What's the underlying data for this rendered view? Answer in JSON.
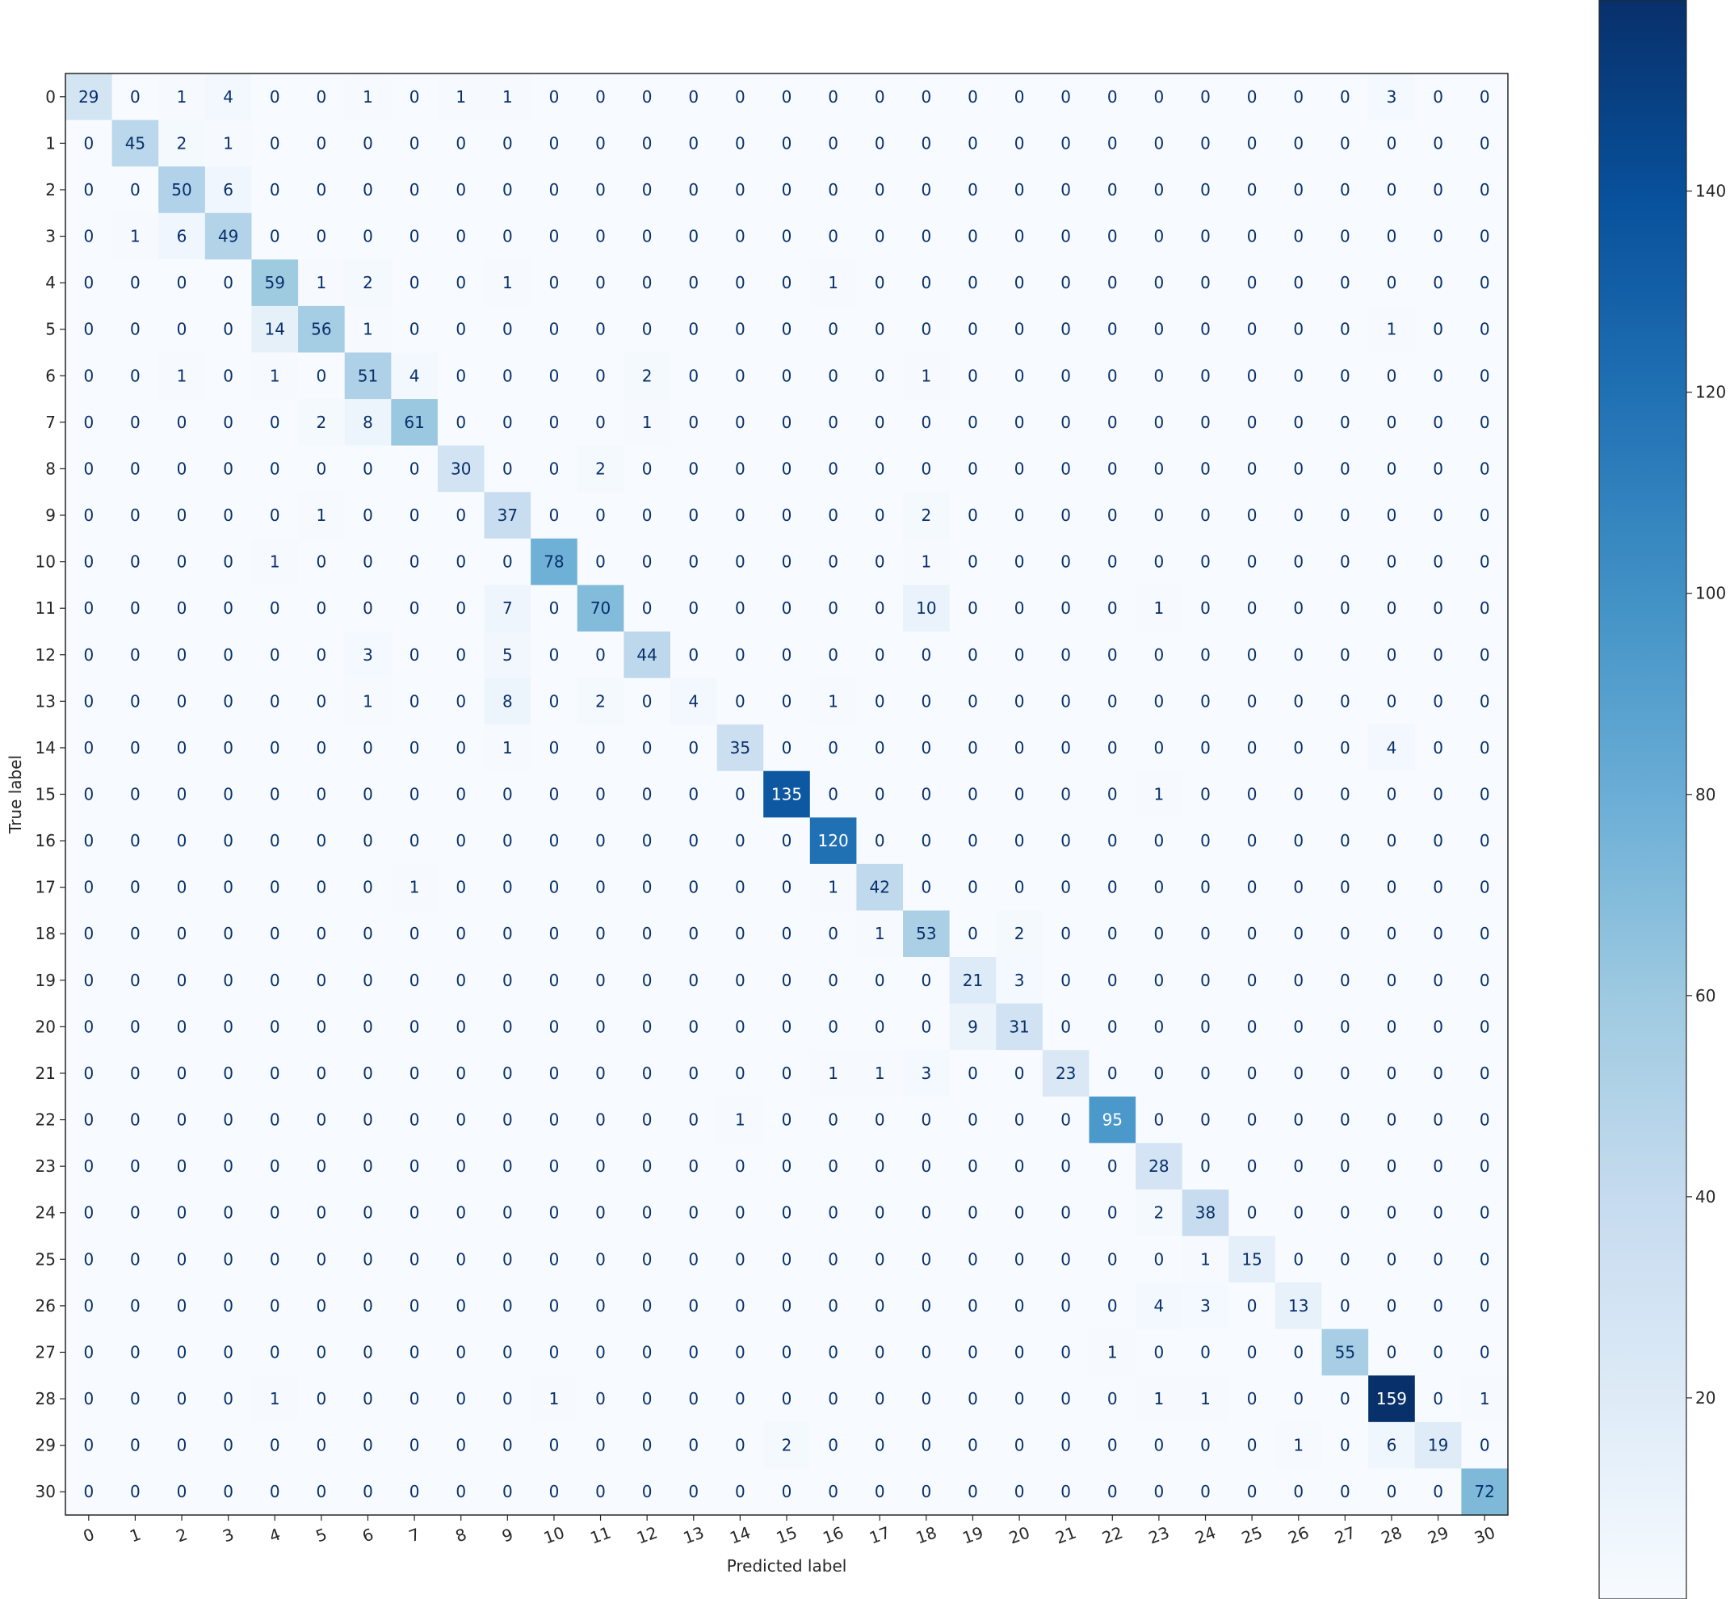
{
  "chart_data": {
    "type": "heatmap",
    "title": "",
    "xlabel": "Predicted label",
    "ylabel": "True label",
    "x_labels": [
      "0",
      "1",
      "2",
      "3",
      "4",
      "5",
      "6",
      "7",
      "8",
      "9",
      "10",
      "11",
      "12",
      "13",
      "14",
      "15",
      "16",
      "17",
      "18",
      "19",
      "20",
      "21",
      "22",
      "23",
      "24",
      "25",
      "26",
      "27",
      "28",
      "29",
      "30"
    ],
    "y_labels": [
      "0",
      "1",
      "2",
      "3",
      "4",
      "5",
      "6",
      "7",
      "8",
      "9",
      "10",
      "11",
      "12",
      "13",
      "14",
      "15",
      "16",
      "17",
      "18",
      "19",
      "20",
      "21",
      "22",
      "23",
      "24",
      "25",
      "26",
      "27",
      "28",
      "29",
      "30"
    ],
    "matrix": [
      [
        29,
        0,
        1,
        4,
        0,
        0,
        1,
        0,
        1,
        1,
        0,
        0,
        0,
        0,
        0,
        0,
        0,
        0,
        0,
        0,
        0,
        0,
        0,
        0,
        0,
        0,
        0,
        0,
        3,
        0,
        0
      ],
      [
        0,
        45,
        2,
        1,
        0,
        0,
        0,
        0,
        0,
        0,
        0,
        0,
        0,
        0,
        0,
        0,
        0,
        0,
        0,
        0,
        0,
        0,
        0,
        0,
        0,
        0,
        0,
        0,
        0,
        0,
        0
      ],
      [
        0,
        0,
        50,
        6,
        0,
        0,
        0,
        0,
        0,
        0,
        0,
        0,
        0,
        0,
        0,
        0,
        0,
        0,
        0,
        0,
        0,
        0,
        0,
        0,
        0,
        0,
        0,
        0,
        0,
        0,
        0
      ],
      [
        0,
        1,
        6,
        49,
        0,
        0,
        0,
        0,
        0,
        0,
        0,
        0,
        0,
        0,
        0,
        0,
        0,
        0,
        0,
        0,
        0,
        0,
        0,
        0,
        0,
        0,
        0,
        0,
        0,
        0,
        0
      ],
      [
        0,
        0,
        0,
        0,
        59,
        1,
        2,
        0,
        0,
        1,
        0,
        0,
        0,
        0,
        0,
        0,
        1,
        0,
        0,
        0,
        0,
        0,
        0,
        0,
        0,
        0,
        0,
        0,
        0,
        0,
        0
      ],
      [
        0,
        0,
        0,
        0,
        14,
        56,
        1,
        0,
        0,
        0,
        0,
        0,
        0,
        0,
        0,
        0,
        0,
        0,
        0,
        0,
        0,
        0,
        0,
        0,
        0,
        0,
        0,
        0,
        1,
        0,
        0
      ],
      [
        0,
        0,
        1,
        0,
        1,
        0,
        51,
        4,
        0,
        0,
        0,
        0,
        2,
        0,
        0,
        0,
        0,
        0,
        1,
        0,
        0,
        0,
        0,
        0,
        0,
        0,
        0,
        0,
        0,
        0,
        0
      ],
      [
        0,
        0,
        0,
        0,
        0,
        2,
        8,
        61,
        0,
        0,
        0,
        0,
        1,
        0,
        0,
        0,
        0,
        0,
        0,
        0,
        0,
        0,
        0,
        0,
        0,
        0,
        0,
        0,
        0,
        0,
        0
      ],
      [
        0,
        0,
        0,
        0,
        0,
        0,
        0,
        0,
        30,
        0,
        0,
        2,
        0,
        0,
        0,
        0,
        0,
        0,
        0,
        0,
        0,
        0,
        0,
        0,
        0,
        0,
        0,
        0,
        0,
        0,
        0
      ],
      [
        0,
        0,
        0,
        0,
        0,
        1,
        0,
        0,
        0,
        37,
        0,
        0,
        0,
        0,
        0,
        0,
        0,
        0,
        2,
        0,
        0,
        0,
        0,
        0,
        0,
        0,
        0,
        0,
        0,
        0,
        0
      ],
      [
        0,
        0,
        0,
        0,
        1,
        0,
        0,
        0,
        0,
        0,
        78,
        0,
        0,
        0,
        0,
        0,
        0,
        0,
        1,
        0,
        0,
        0,
        0,
        0,
        0,
        0,
        0,
        0,
        0,
        0,
        0
      ],
      [
        0,
        0,
        0,
        0,
        0,
        0,
        0,
        0,
        0,
        7,
        0,
        70,
        0,
        0,
        0,
        0,
        0,
        0,
        10,
        0,
        0,
        0,
        0,
        1,
        0,
        0,
        0,
        0,
        0,
        0,
        0
      ],
      [
        0,
        0,
        0,
        0,
        0,
        0,
        3,
        0,
        0,
        5,
        0,
        0,
        44,
        0,
        0,
        0,
        0,
        0,
        0,
        0,
        0,
        0,
        0,
        0,
        0,
        0,
        0,
        0,
        0,
        0,
        0
      ],
      [
        0,
        0,
        0,
        0,
        0,
        0,
        1,
        0,
        0,
        8,
        0,
        2,
        0,
        4,
        0,
        0,
        1,
        0,
        0,
        0,
        0,
        0,
        0,
        0,
        0,
        0,
        0,
        0,
        0,
        0,
        0
      ],
      [
        0,
        0,
        0,
        0,
        0,
        0,
        0,
        0,
        0,
        1,
        0,
        0,
        0,
        0,
        35,
        0,
        0,
        0,
        0,
        0,
        0,
        0,
        0,
        0,
        0,
        0,
        0,
        0,
        4,
        0,
        0
      ],
      [
        0,
        0,
        0,
        0,
        0,
        0,
        0,
        0,
        0,
        0,
        0,
        0,
        0,
        0,
        0,
        135,
        0,
        0,
        0,
        0,
        0,
        0,
        0,
        1,
        0,
        0,
        0,
        0,
        0,
        0,
        0
      ],
      [
        0,
        0,
        0,
        0,
        0,
        0,
        0,
        0,
        0,
        0,
        0,
        0,
        0,
        0,
        0,
        0,
        120,
        0,
        0,
        0,
        0,
        0,
        0,
        0,
        0,
        0,
        0,
        0,
        0,
        0,
        0
      ],
      [
        0,
        0,
        0,
        0,
        0,
        0,
        0,
        1,
        0,
        0,
        0,
        0,
        0,
        0,
        0,
        0,
        1,
        42,
        0,
        0,
        0,
        0,
        0,
        0,
        0,
        0,
        0,
        0,
        0,
        0,
        0
      ],
      [
        0,
        0,
        0,
        0,
        0,
        0,
        0,
        0,
        0,
        0,
        0,
        0,
        0,
        0,
        0,
        0,
        0,
        1,
        53,
        0,
        2,
        0,
        0,
        0,
        0,
        0,
        0,
        0,
        0,
        0,
        0
      ],
      [
        0,
        0,
        0,
        0,
        0,
        0,
        0,
        0,
        0,
        0,
        0,
        0,
        0,
        0,
        0,
        0,
        0,
        0,
        0,
        21,
        3,
        0,
        0,
        0,
        0,
        0,
        0,
        0,
        0,
        0,
        0
      ],
      [
        0,
        0,
        0,
        0,
        0,
        0,
        0,
        0,
        0,
        0,
        0,
        0,
        0,
        0,
        0,
        0,
        0,
        0,
        0,
        9,
        31,
        0,
        0,
        0,
        0,
        0,
        0,
        0,
        0,
        0,
        0
      ],
      [
        0,
        0,
        0,
        0,
        0,
        0,
        0,
        0,
        0,
        0,
        0,
        0,
        0,
        0,
        0,
        0,
        1,
        1,
        3,
        0,
        0,
        23,
        0,
        0,
        0,
        0,
        0,
        0,
        0,
        0,
        0
      ],
      [
        0,
        0,
        0,
        0,
        0,
        0,
        0,
        0,
        0,
        0,
        0,
        0,
        0,
        0,
        1,
        0,
        0,
        0,
        0,
        0,
        0,
        0,
        95,
        0,
        0,
        0,
        0,
        0,
        0,
        0,
        0
      ],
      [
        0,
        0,
        0,
        0,
        0,
        0,
        0,
        0,
        0,
        0,
        0,
        0,
        0,
        0,
        0,
        0,
        0,
        0,
        0,
        0,
        0,
        0,
        0,
        28,
        0,
        0,
        0,
        0,
        0,
        0,
        0
      ],
      [
        0,
        0,
        0,
        0,
        0,
        0,
        0,
        0,
        0,
        0,
        0,
        0,
        0,
        0,
        0,
        0,
        0,
        0,
        0,
        0,
        0,
        0,
        0,
        2,
        38,
        0,
        0,
        0,
        0,
        0,
        0
      ],
      [
        0,
        0,
        0,
        0,
        0,
        0,
        0,
        0,
        0,
        0,
        0,
        0,
        0,
        0,
        0,
        0,
        0,
        0,
        0,
        0,
        0,
        0,
        0,
        0,
        1,
        15,
        0,
        0,
        0,
        0,
        0
      ],
      [
        0,
        0,
        0,
        0,
        0,
        0,
        0,
        0,
        0,
        0,
        0,
        0,
        0,
        0,
        0,
        0,
        0,
        0,
        0,
        0,
        0,
        0,
        0,
        4,
        3,
        0,
        13,
        0,
        0,
        0,
        0
      ],
      [
        0,
        0,
        0,
        0,
        0,
        0,
        0,
        0,
        0,
        0,
        0,
        0,
        0,
        0,
        0,
        0,
        0,
        0,
        0,
        0,
        0,
        0,
        1,
        0,
        0,
        0,
        0,
        55,
        0,
        0,
        0
      ],
      [
        0,
        0,
        0,
        0,
        1,
        0,
        0,
        0,
        0,
        0,
        1,
        0,
        0,
        0,
        0,
        0,
        0,
        0,
        0,
        0,
        0,
        0,
        0,
        1,
        1,
        0,
        0,
        0,
        159,
        0,
        1
      ],
      [
        0,
        0,
        0,
        0,
        0,
        0,
        0,
        0,
        0,
        0,
        0,
        0,
        0,
        0,
        0,
        2,
        0,
        0,
        0,
        0,
        0,
        0,
        0,
        0,
        0,
        0,
        1,
        0,
        6,
        19,
        0
      ],
      [
        0,
        0,
        0,
        0,
        0,
        0,
        0,
        0,
        0,
        0,
        0,
        0,
        0,
        0,
        0,
        0,
        0,
        0,
        0,
        0,
        0,
        0,
        0,
        0,
        0,
        0,
        0,
        0,
        0,
        0,
        72
      ]
    ],
    "colormap": "Blues",
    "vmin": 0,
    "vmax": 159,
    "colorbar_ticks": [
      20,
      40,
      60,
      80,
      100,
      120,
      140
    ],
    "grid": false,
    "text_color_light": "#ffffff",
    "text_color_dark": "#08306b"
  }
}
